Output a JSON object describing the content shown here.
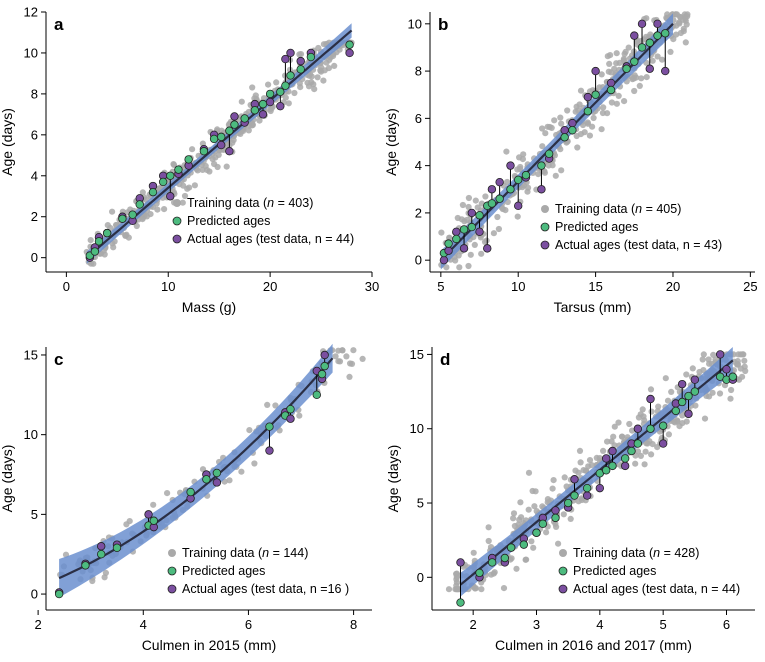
{
  "colors": {
    "training": "#a9a9a9",
    "predicted": "#4dbb7f",
    "actual": "#7b4fa0",
    "ci": "#6b8fcf",
    "fit": "#2b2f45"
  },
  "chart_data": [
    {
      "type": "scatter",
      "panel": "a",
      "xlabel": "Mass (g)",
      "ylabel": "Age (days)",
      "xlim": [
        -2,
        30
      ],
      "ylim": [
        -0.7,
        12
      ],
      "xticks": [
        0,
        10,
        20,
        30
      ],
      "yticks": [
        0,
        2,
        4,
        6,
        8,
        10,
        12
      ],
      "legend_position": "bottom-right",
      "legend": [
        "Training data (n = 403)",
        "Predicted ages",
        "Actual ages (test data, n = 44)"
      ],
      "fit": {
        "x": [
          2,
          28
        ],
        "y": [
          0.0,
          11.1
        ]
      },
      "ci_halfwidth": [
        0.3,
        0.1,
        0.35
      ],
      "training": {
        "n": 403,
        "x_range": [
          2,
          28
        ],
        "y_range": [
          -0.3,
          10.5
        ],
        "noise": 0.55
      },
      "test_pairs": [
        [
          2.3,
          0.1,
          0.0
        ],
        [
          2.8,
          0.3,
          0.5
        ],
        [
          3.2,
          0.8,
          1.0
        ],
        [
          4.0,
          1.2,
          1.2
        ],
        [
          5.5,
          1.9,
          2.0
        ],
        [
          6.5,
          2.1,
          1.8
        ],
        [
          7.2,
          2.6,
          2.9
        ],
        [
          8.5,
          3.2,
          3.5
        ],
        [
          9.5,
          3.7,
          4.0
        ],
        [
          10.2,
          4.0,
          3.0
        ],
        [
          11.0,
          4.3,
          4.1
        ],
        [
          12.0,
          4.8,
          4.5
        ],
        [
          13.5,
          5.2,
          5.3
        ],
        [
          14.5,
          5.8,
          6.0
        ],
        [
          15.2,
          5.9,
          5.5
        ],
        [
          16.0,
          6.2,
          5.2
        ],
        [
          16.5,
          6.5,
          6.9
        ],
        [
          17.5,
          6.8,
          6.6
        ],
        [
          18.5,
          7.2,
          7.5
        ],
        [
          19.3,
          7.5,
          7.0
        ],
        [
          20.0,
          8.0,
          7.6
        ],
        [
          21.0,
          8.1,
          7.4
        ],
        [
          21.5,
          8.4,
          9.7
        ],
        [
          22.0,
          8.9,
          10.0
        ],
        [
          23.0,
          9.2,
          9.6
        ],
        [
          24.0,
          9.8,
          10.0
        ],
        [
          27.8,
          10.4,
          10.0
        ]
      ]
    },
    {
      "type": "scatter",
      "panel": "b",
      "xlabel": "Tarsus (mm)",
      "ylabel": "Age (days)",
      "xlim": [
        4.3,
        25.3
      ],
      "ylim": [
        -0.5,
        10.5
      ],
      "xticks": [
        5,
        10,
        15,
        20,
        25
      ],
      "yticks": [
        0,
        2,
        4,
        6,
        8,
        10
      ],
      "legend_position": "bottom-right",
      "legend": [
        "Training data (n = 405)",
        "Predicted ages",
        "Actual ages (test data, n = 43)"
      ],
      "fit": {
        "x": [
          5,
          20
        ],
        "y": [
          0.0,
          10.0
        ]
      },
      "ci_halfwidth": [
        0.4,
        0.15,
        0.45
      ],
      "training": {
        "n": 405,
        "x_range": [
          5,
          21
        ],
        "y_range": [
          -0.3,
          10.4
        ],
        "noise": 0.8
      },
      "test_pairs": [
        [
          5.2,
          0.3,
          0.0
        ],
        [
          5.5,
          0.7,
          0.4
        ],
        [
          6.0,
          0.9,
          1.2
        ],
        [
          6.5,
          1.3,
          0.5
        ],
        [
          7.0,
          1.4,
          2.0
        ],
        [
          7.5,
          1.9,
          1.2
        ],
        [
          8.0,
          2.3,
          0.5
        ],
        [
          8.3,
          2.4,
          3.0
        ],
        [
          8.8,
          2.6,
          3.3
        ],
        [
          9.5,
          3.0,
          4.0
        ],
        [
          10.0,
          3.4,
          2.3
        ],
        [
          10.5,
          3.6,
          3.5
        ],
        [
          11.5,
          4.0,
          3.0
        ],
        [
          12.0,
          4.5,
          4.3
        ],
        [
          13.0,
          5.2,
          5.5
        ],
        [
          13.5,
          5.5,
          5.8
        ],
        [
          14.5,
          6.3,
          6.9
        ],
        [
          15.0,
          7.0,
          8.0
        ],
        [
          16.0,
          7.2,
          7.5
        ],
        [
          17.0,
          8.1,
          8.2
        ],
        [
          17.5,
          8.4,
          9.5
        ],
        [
          18.0,
          9.0,
          10.0
        ],
        [
          18.5,
          9.2,
          8.1
        ],
        [
          19.0,
          9.5,
          10.0
        ],
        [
          19.5,
          9.6,
          8.0
        ]
      ]
    },
    {
      "type": "scatter",
      "panel": "c",
      "xlabel": "Culmen in 2015 (mm)",
      "ylabel": "Age (days)",
      "xlim": [
        2.15,
        8.35
      ],
      "ylim": [
        -1.0,
        15.5
      ],
      "xticks": [
        2,
        4,
        6,
        8
      ],
      "yticks": [
        0,
        5,
        10,
        15
      ],
      "legend_position": "bottom-right",
      "legend": [
        "Training data (n = 144)",
        "Predicted ages",
        "Actual ages (test data, n =16 )"
      ],
      "fit": {
        "x": [
          2.4,
          7.6
        ],
        "y": [
          1.0,
          14.8
        ],
        "curve": "quadratic"
      },
      "ci_halfwidth": [
        1.2,
        0.3,
        0.9
      ],
      "training": {
        "n": 144,
        "x_range": [
          2.4,
          8.2
        ],
        "y_range": [
          -0.3,
          15.3
        ],
        "noise": 0.8
      },
      "test_pairs": [
        [
          2.4,
          0.0,
          0.1
        ],
        [
          2.9,
          1.8,
          1.9
        ],
        [
          3.2,
          2.5,
          3.0
        ],
        [
          3.5,
          2.9,
          3.1
        ],
        [
          4.1,
          4.3,
          5.0
        ],
        [
          4.2,
          4.6,
          4.2
        ],
        [
          4.9,
          6.4,
          6.0
        ],
        [
          5.2,
          7.2,
          7.5
        ],
        [
          5.4,
          7.6,
          7.0
        ],
        [
          6.4,
          10.5,
          9.0
        ],
        [
          6.7,
          11.2,
          11.4
        ],
        [
          6.8,
          11.6,
          11.0
        ],
        [
          7.3,
          12.5,
          14.0
        ],
        [
          7.4,
          13.8,
          13.5
        ],
        [
          7.45,
          14.3,
          15.0
        ]
      ]
    },
    {
      "type": "scatter",
      "panel": "d",
      "xlabel": "Culmen in 2016 and 2017 (mm)",
      "ylabel": "Age (days)",
      "xlim": [
        1.35,
        6.45
      ],
      "ylim": [
        -2.2,
        15.5
      ],
      "xticks": [
        2,
        3,
        4,
        5,
        6
      ],
      "yticks": [
        0,
        5,
        10,
        15
      ],
      "legend_position": "bottom-right",
      "legend": [
        "Training data (n = 428)",
        "Predicted ages",
        "Actual ages (test data, n = 44)"
      ],
      "fit": {
        "x": [
          1.8,
          6.1
        ],
        "y": [
          -0.5,
          14.6
        ]
      },
      "ci_halfwidth": [
        0.8,
        0.2,
        0.9
      ],
      "training": {
        "n": 428,
        "x_range": [
          1.6,
          6.3
        ],
        "y_range": [
          -0.8,
          15.0
        ],
        "noise": 1.1
      },
      "test_pairs": [
        [
          1.8,
          -1.7,
          1.0
        ],
        [
          2.1,
          0.3,
          0.0
        ],
        [
          2.3,
          1.0,
          1.3
        ],
        [
          2.5,
          1.3,
          1.0
        ],
        [
          2.6,
          2.0,
          2.0
        ],
        [
          2.8,
          2.2,
          2.6
        ],
        [
          3.0,
          3.0,
          3.0
        ],
        [
          3.1,
          3.6,
          4.0
        ],
        [
          3.3,
          4.0,
          4.5
        ],
        [
          3.5,
          5.0,
          4.7
        ],
        [
          3.6,
          5.5,
          6.6
        ],
        [
          3.8,
          6.0,
          5.5
        ],
        [
          4.0,
          7.0,
          6.0
        ],
        [
          4.1,
          7.2,
          8.0
        ],
        [
          4.2,
          7.5,
          8.5
        ],
        [
          4.4,
          8.0,
          7.5
        ],
        [
          4.5,
          8.5,
          9.0
        ],
        [
          4.6,
          9.0,
          10.0
        ],
        [
          4.8,
          10.0,
          12.0
        ],
        [
          5.0,
          10.2,
          9.0
        ],
        [
          5.2,
          11.2,
          11.7
        ],
        [
          5.3,
          11.8,
          13.0
        ],
        [
          5.4,
          12.2,
          11.0
        ],
        [
          5.5,
          12.5,
          13.3
        ],
        [
          5.9,
          13.5,
          15.0
        ],
        [
          6.0,
          13.3,
          14.0
        ],
        [
          6.1,
          13.5,
          13.3
        ]
      ]
    }
  ]
}
